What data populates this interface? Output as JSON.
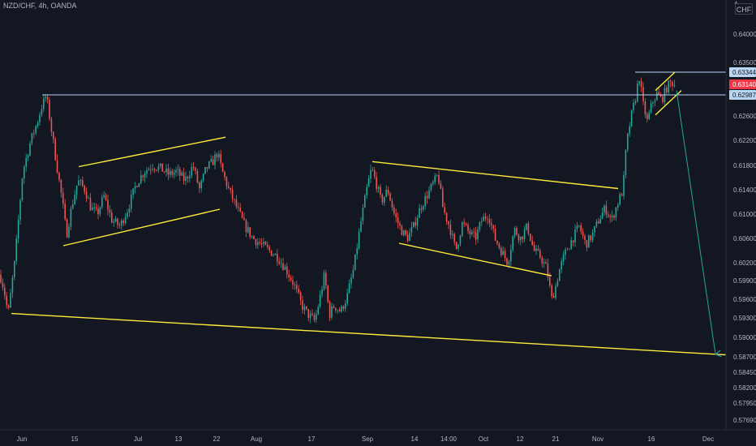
{
  "header": {
    "symbol": "NZD/CHF, 4h, OANDA",
    "currency": "CHF"
  },
  "chart_data": {
    "type": "candlestick",
    "title": "NZD/CHF, 4h, OANDA",
    "y_ticks": [
      "0.64000",
      "0.63500",
      "0.62600",
      "0.62200",
      "0.61800",
      "0.61400",
      "0.61000",
      "0.60600",
      "0.60200",
      "0.59900",
      "0.59600",
      "0.59300",
      "0.59000",
      "0.58700",
      "0.58450",
      "0.58200",
      "0.57950",
      "0.57690"
    ],
    "x_ticks": [
      "Jun",
      "15",
      "Jul",
      "13",
      "22",
      "Aug",
      "17",
      "Sep",
      "14",
      "14:00",
      "Oct",
      "12",
      "21",
      "Nov",
      "16",
      "Dec"
    ],
    "price_labels": [
      {
        "value": "0.63344",
        "kind": "horizontal-line",
        "color": "#bbd6f5"
      },
      {
        "value": "0.63140",
        "kind": "last-price",
        "color": "#f23645"
      },
      {
        "value": "0.62987",
        "kind": "horizontal-line",
        "color": "#bbd6f5"
      }
    ],
    "price_path": [
      {
        "t": 0,
        "p": 0.6
      },
      {
        "t": 5,
        "p": 0.5975
      },
      {
        "t": 10,
        "p": 0.5935
      },
      {
        "t": 18,
        "p": 0.602
      },
      {
        "t": 28,
        "p": 0.617
      },
      {
        "t": 38,
        "p": 0.622
      },
      {
        "t": 46,
        "p": 0.625
      },
      {
        "t": 52,
        "p": 0.628
      },
      {
        "t": 57,
        "p": 0.6298
      },
      {
        "t": 63,
        "p": 0.624
      },
      {
        "t": 70,
        "p": 0.618
      },
      {
        "t": 77,
        "p": 0.612
      },
      {
        "t": 82,
        "p": 0.6065
      },
      {
        "t": 88,
        "p": 0.611
      },
      {
        "t": 96,
        "p": 0.6155
      },
      {
        "t": 105,
        "p": 0.614
      },
      {
        "t": 112,
        "p": 0.611
      },
      {
        "t": 120,
        "p": 0.61
      },
      {
        "t": 128,
        "p": 0.613
      },
      {
        "t": 138,
        "p": 0.609
      },
      {
        "t": 148,
        "p": 0.608
      },
      {
        "t": 158,
        "p": 0.611
      },
      {
        "t": 168,
        "p": 0.615
      },
      {
        "t": 178,
        "p": 0.617
      },
      {
        "t": 188,
        "p": 0.618
      },
      {
        "t": 198,
        "p": 0.6175
      },
      {
        "t": 208,
        "p": 0.6165
      },
      {
        "t": 218,
        "p": 0.617
      },
      {
        "t": 228,
        "p": 0.6155
      },
      {
        "t": 238,
        "p": 0.618
      },
      {
        "t": 246,
        "p": 0.614
      },
      {
        "t": 254,
        "p": 0.6175
      },
      {
        "t": 262,
        "p": 0.6185
      },
      {
        "t": 268,
        "p": 0.62
      },
      {
        "t": 274,
        "p": 0.617
      },
      {
        "t": 282,
        "p": 0.614
      },
      {
        "t": 292,
        "p": 0.611
      },
      {
        "t": 302,
        "p": 0.608
      },
      {
        "t": 312,
        "p": 0.606
      },
      {
        "t": 322,
        "p": 0.605
      },
      {
        "t": 332,
        "p": 0.604
      },
      {
        "t": 342,
        "p": 0.603
      },
      {
        "t": 352,
        "p": 0.601
      },
      {
        "t": 362,
        "p": 0.5985
      },
      {
        "t": 372,
        "p": 0.595
      },
      {
        "t": 380,
        "p": 0.5935
      },
      {
        "t": 388,
        "p": 0.5925
      },
      {
        "t": 394,
        "p": 0.596
      },
      {
        "t": 400,
        "p": 0.6
      },
      {
        "t": 406,
        "p": 0.5935
      },
      {
        "t": 412,
        "p": 0.595
      },
      {
        "t": 420,
        "p": 0.594
      },
      {
        "t": 428,
        "p": 0.5965
      },
      {
        "t": 436,
        "p": 0.601
      },
      {
        "t": 444,
        "p": 0.608
      },
      {
        "t": 452,
        "p": 0.614
      },
      {
        "t": 458,
        "p": 0.6175
      },
      {
        "t": 464,
        "p": 0.615
      },
      {
        "t": 470,
        "p": 0.612
      },
      {
        "t": 478,
        "p": 0.614
      },
      {
        "t": 486,
        "p": 0.61
      },
      {
        "t": 494,
        "p": 0.6075
      },
      {
        "t": 502,
        "p": 0.606
      },
      {
        "t": 510,
        "p": 0.608
      },
      {
        "t": 518,
        "p": 0.611
      },
      {
        "t": 526,
        "p": 0.613
      },
      {
        "t": 534,
        "p": 0.615
      },
      {
        "t": 540,
        "p": 0.6165
      },
      {
        "t": 546,
        "p": 0.611
      },
      {
        "t": 554,
        "p": 0.608
      },
      {
        "t": 562,
        "p": 0.604
      },
      {
        "t": 570,
        "p": 0.6085
      },
      {
        "t": 578,
        "p": 0.607
      },
      {
        "t": 586,
        "p": 0.606
      },
      {
        "t": 594,
        "p": 0.609
      },
      {
        "t": 602,
        "p": 0.61
      },
      {
        "t": 610,
        "p": 0.606
      },
      {
        "t": 618,
        "p": 0.604
      },
      {
        "t": 626,
        "p": 0.602
      },
      {
        "t": 634,
        "p": 0.6075
      },
      {
        "t": 642,
        "p": 0.606
      },
      {
        "t": 650,
        "p": 0.608
      },
      {
        "t": 658,
        "p": 0.604
      },
      {
        "t": 666,
        "p": 0.603
      },
      {
        "t": 674,
        "p": 0.601
      },
      {
        "t": 680,
        "p": 0.596
      },
      {
        "t": 684,
        "p": 0.5975
      },
      {
        "t": 690,
        "p": 0.601
      },
      {
        "t": 698,
        "p": 0.604
      },
      {
        "t": 706,
        "p": 0.606
      },
      {
        "t": 714,
        "p": 0.608
      },
      {
        "t": 722,
        "p": 0.605
      },
      {
        "t": 730,
        "p": 0.6065
      },
      {
        "t": 738,
        "p": 0.609
      },
      {
        "t": 746,
        "p": 0.611
      },
      {
        "t": 754,
        "p": 0.609
      },
      {
        "t": 762,
        "p": 0.612
      },
      {
        "t": 768,
        "p": 0.614
      },
      {
        "t": 772,
        "p": 0.621
      },
      {
        "t": 778,
        "p": 0.626
      },
      {
        "t": 783,
        "p": 0.629
      },
      {
        "t": 788,
        "p": 0.6328
      },
      {
        "t": 793,
        "p": 0.628
      },
      {
        "t": 798,
        "p": 0.625
      },
      {
        "t": 804,
        "p": 0.6285
      },
      {
        "t": 810,
        "p": 0.63
      },
      {
        "t": 816,
        "p": 0.629
      },
      {
        "t": 822,
        "p": 0.631
      },
      {
        "t": 828,
        "p": 0.6318
      },
      {
        "t": 832,
        "p": 0.6314
      }
    ],
    "drawings": [
      {
        "name": "resistance-line-upper",
        "kind": "horizontal",
        "price": 0.63344,
        "x_range": [
          783,
          895
        ],
        "color": "#bbd6f5"
      },
      {
        "name": "resistance-line-lower",
        "kind": "horizontal",
        "price": 0.62987,
        "x_range": [
          52,
          895
        ],
        "color": "#bbd6f5"
      },
      {
        "name": "channel-1-top",
        "kind": "trend",
        "from": {
          "t": 97,
          "p": 0.6178
        },
        "to": {
          "t": 278,
          "p": 0.6225
        },
        "color": "#ffeb3b"
      },
      {
        "name": "channel-1-bottom",
        "kind": "trend",
        "from": {
          "t": 78,
          "p": 0.6048
        },
        "to": {
          "t": 271,
          "p": 0.6108
        },
        "color": "#ffeb3b"
      },
      {
        "name": "channel-2-top",
        "kind": "trend",
        "from": {
          "t": 459,
          "p": 0.6186
        },
        "to": {
          "t": 762,
          "p": 0.6142
        },
        "color": "#ffeb3b"
      },
      {
        "name": "channel-2-bottom",
        "kind": "trend",
        "from": {
          "t": 492,
          "p": 0.6052
        },
        "to": {
          "t": 680,
          "p": 0.5998
        },
        "color": "#ffeb3b"
      },
      {
        "name": "wedge-top",
        "kind": "trend",
        "from": {
          "t": 808,
          "p": 0.6305
        },
        "to": {
          "t": 832,
          "p": 0.63344
        },
        "color": "#ffeb3b"
      },
      {
        "name": "wedge-bottom",
        "kind": "trend",
        "from": {
          "t": 808,
          "p": 0.6262
        },
        "to": {
          "t": 840,
          "p": 0.6305
        },
        "color": "#ffeb3b"
      },
      {
        "name": "long-support-line",
        "kind": "trend",
        "from": {
          "t": 14,
          "p": 0.5937
        },
        "to": {
          "t": 895,
          "p": 0.5873
        },
        "color": "#ffeb3b"
      },
      {
        "name": "projection-arrow",
        "kind": "arrow",
        "from": {
          "t": 834,
          "p": 0.6305
        },
        "to": {
          "t": 882,
          "p": 0.5874
        },
        "color": "#26a69a"
      }
    ],
    "candle_colors": {
      "up": "#26a69a",
      "down": "#ef5350"
    },
    "grid": false,
    "legend": "none"
  }
}
